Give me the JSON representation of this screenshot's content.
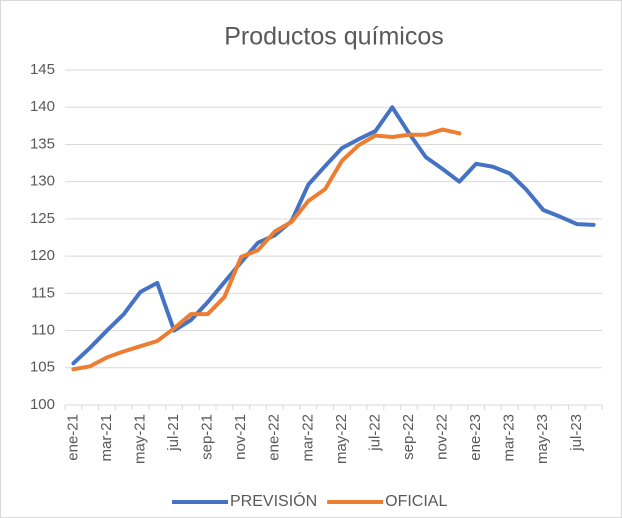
{
  "chart_data": {
    "type": "line",
    "title": "Productos químicos",
    "categories": [
      "ene-21",
      null,
      "mar-21",
      null,
      "may-21",
      null,
      "jul-21",
      null,
      "sep-21",
      null,
      "nov-21",
      null,
      "ene-22",
      null,
      "mar-22",
      null,
      "may-22",
      null,
      "jul-22",
      null,
      "sep-22",
      null,
      "nov-22",
      null,
      "ene-23",
      null,
      "mar-23",
      null,
      "may-23",
      null,
      "jul-23",
      null
    ],
    "series": [
      {
        "name": "PREVISIÓN",
        "color": "#4472c4",
        "values": [
          105.6,
          107.7,
          110,
          112.2,
          115.2,
          116.4,
          110,
          111.4,
          113.8,
          116.5,
          119.2,
          121.8,
          122.8,
          124.7,
          129.6,
          132.1,
          134.5,
          135.7,
          136.8,
          140,
          136.5,
          133.3,
          131.7,
          130,
          132.4,
          132,
          131.1,
          128.9,
          126.2,
          125.3,
          124.3,
          124.2
        ]
      },
      {
        "name": "OFICIAL",
        "color": "#ed7d31",
        "values": [
          104.8,
          105.2,
          106.4,
          107.2,
          107.9,
          108.6,
          110.3,
          112.2,
          112.2,
          114.5,
          119.9,
          120.8,
          123.3,
          124.6,
          127.4,
          129,
          132.8,
          134.9,
          136.2,
          136,
          136.3,
          136.3,
          137,
          136.5,
          null,
          null,
          null,
          null,
          null,
          null,
          null,
          null
        ]
      }
    ],
    "ylim": [
      100,
      145
    ],
    "yticks": [
      100,
      105,
      110,
      115,
      120,
      125,
      130,
      135,
      140,
      145
    ],
    "grid": true,
    "legend": "bottom"
  }
}
